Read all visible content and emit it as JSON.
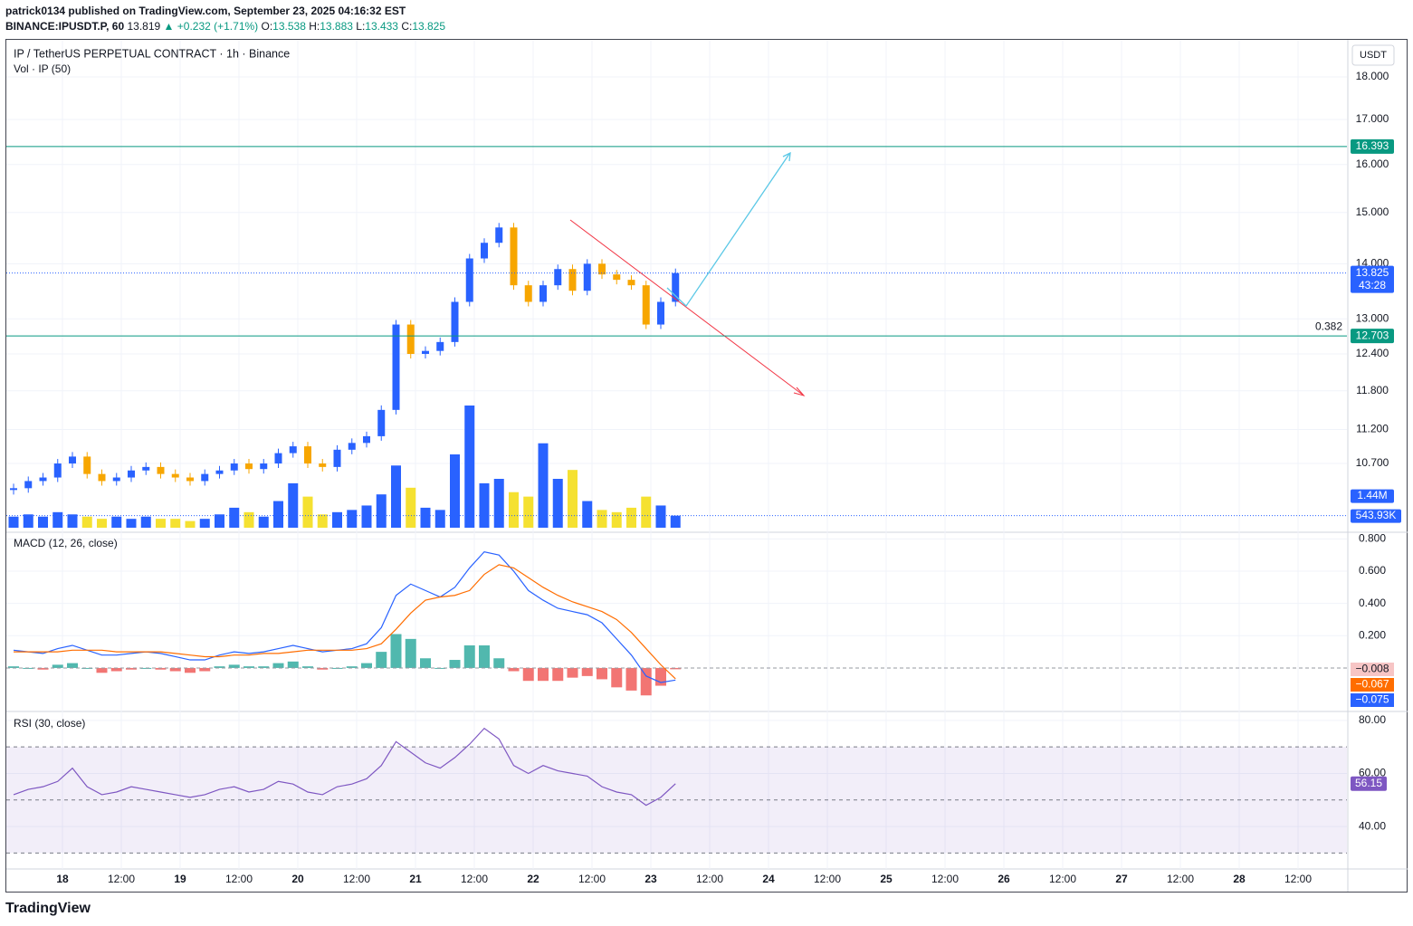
{
  "header": {
    "line1": "patrick0134 published on TradingView.com, September 23, 2025 04:16:32 EST",
    "symbol": "BINANCE:IPUSDT.P, 60",
    "last": "13.819",
    "change": "▲ +0.232 (+1.71%)",
    "ohlc": [
      [
        "O:",
        "13.538"
      ],
      [
        "H:",
        "13.883"
      ],
      [
        "L:",
        "13.433"
      ],
      [
        "C:",
        "13.825"
      ]
    ],
    "brand": "TradingView"
  },
  "chart_data": {
    "type": "candlestick",
    "title": "IP / TetherUS PERPETUAL CONTRACT · 1h · Binance",
    "volume_title": "Vol · IP (50)",
    "currency": "USDT",
    "log_scale": true,
    "xtick_labels": [
      "18",
      "12:00",
      "19",
      "12:00",
      "20",
      "12:00",
      "21",
      "12:00",
      "22",
      "12:00",
      "23",
      "12:00",
      "24",
      "12:00",
      "25",
      "12:00",
      "26",
      "12:00",
      "27",
      "12:00",
      "28",
      "12:00"
    ],
    "closes": [
      10.35,
      10.45,
      10.5,
      10.7,
      10.8,
      10.55,
      10.45,
      10.5,
      10.6,
      10.65,
      10.55,
      10.5,
      10.45,
      10.55,
      10.6,
      10.7,
      10.62,
      10.7,
      10.85,
      10.95,
      10.7,
      10.65,
      10.9,
      11.0,
      11.1,
      11.5,
      12.9,
      12.4,
      12.45,
      12.6,
      13.3,
      14.1,
      14.4,
      14.7,
      13.6,
      13.3,
      13.6,
      13.9,
      13.5,
      14.0,
      13.8,
      13.7,
      13.6,
      12.9,
      13.3,
      13.825
    ],
    "up_color": "#2962ff",
    "down_color": "#f7a600",
    "ylim": [
      9.79,
      18.9
    ],
    "yticks": [
      {
        "value": 18,
        "label": "18.000"
      },
      {
        "value": 17,
        "label": "17.000"
      },
      {
        "value": 16,
        "label": "16.000"
      },
      {
        "value": 15,
        "label": "15.000"
      },
      {
        "value": 14,
        "label": "14.000"
      },
      {
        "value": 13,
        "label": "13.000"
      },
      {
        "value": 12.4,
        "label": "12.400"
      },
      {
        "value": 11.8,
        "label": "11.800"
      },
      {
        "value": 11.2,
        "label": "11.200"
      },
      {
        "value": 10.7,
        "label": "10.700"
      }
    ],
    "price_lines": [
      {
        "value": 16.393,
        "label": "16.393",
        "color": "#089981"
      },
      {
        "value": 12.703,
        "label": "12.703",
        "color": "#089981",
        "fib_label": "0.382"
      }
    ],
    "last_price": {
      "value": 13.825,
      "label": "13.825",
      "countdown": "43:28",
      "color": "#2962ff"
    },
    "volumes": [
      500000,
      600000,
      500000,
      700000,
      600000,
      500000,
      400000,
      500000,
      400000,
      500000,
      400000,
      400000,
      300000,
      400000,
      600000,
      900000,
      700000,
      500000,
      1200000,
      2000000,
      1400000,
      600000,
      700000,
      800000,
      1000000,
      1500000,
      2800000,
      1800000,
      900000,
      800000,
      3300000,
      5500000,
      2000000,
      2200000,
      1600000,
      1400000,
      3800000,
      2200000,
      2600000,
      1200000,
      800000,
      700000,
      900000,
      1400000,
      1000000,
      543930
    ],
    "volume_up_color": "#2962ff",
    "volume_down_color": "#f5e131",
    "volume_ma_label": {
      "value": 1440000,
      "label": "1.44M"
    },
    "volume_last_label": "543.93K",
    "macd": {
      "title": "MACD (12, 26, close)",
      "ylim": [
        -0.264,
        0.83
      ],
      "yticks": [
        {
          "value": 0.8,
          "label": "0.800"
        },
        {
          "value": 0.6,
          "label": "0.600"
        },
        {
          "value": 0.4,
          "label": "0.400"
        },
        {
          "value": 0.2,
          "label": "0.200"
        }
      ],
      "series": [
        {
          "name": "MACD",
          "color": "#2962ff",
          "last_label": "−0.075",
          "values": [
            0.11,
            0.1,
            0.09,
            0.12,
            0.14,
            0.11,
            0.08,
            0.08,
            0.09,
            0.1,
            0.09,
            0.07,
            0.05,
            0.05,
            0.08,
            0.1,
            0.09,
            0.1,
            0.12,
            0.14,
            0.12,
            0.1,
            0.11,
            0.12,
            0.15,
            0.25,
            0.45,
            0.52,
            0.48,
            0.44,
            0.5,
            0.62,
            0.72,
            0.7,
            0.6,
            0.48,
            0.42,
            0.37,
            0.35,
            0.33,
            0.28,
            0.18,
            0.08,
            -0.05,
            -0.09,
            -0.075
          ]
        },
        {
          "name": "Signal",
          "color": "#ff6d00",
          "last_label": "−0.067",
          "values": [
            0.1,
            0.1,
            0.1,
            0.1,
            0.11,
            0.11,
            0.11,
            0.1,
            0.1,
            0.1,
            0.1,
            0.09,
            0.08,
            0.07,
            0.07,
            0.08,
            0.08,
            0.09,
            0.09,
            0.1,
            0.11,
            0.11,
            0.11,
            0.11,
            0.12,
            0.15,
            0.24,
            0.34,
            0.42,
            0.44,
            0.45,
            0.48,
            0.58,
            0.64,
            0.62,
            0.56,
            0.5,
            0.45,
            0.41,
            0.38,
            0.35,
            0.3,
            0.22,
            0.12,
            0.02,
            -0.067
          ]
        }
      ],
      "histogram": {
        "pos_color": "#26a69a",
        "neg_color": "#ef5350",
        "last_label": "−0.008",
        "values": [
          0.01,
          0,
          -0.01,
          0.02,
          0.03,
          0,
          -0.03,
          -0.02,
          -0.01,
          0,
          -0.01,
          -0.02,
          -0.03,
          -0.02,
          0.01,
          0.02,
          0.01,
          0.01,
          0.03,
          0.04,
          0.01,
          -0.01,
          0,
          0.01,
          0.03,
          0.1,
          0.21,
          0.18,
          0.06,
          0,
          0.05,
          0.14,
          0.14,
          0.06,
          -0.02,
          -0.08,
          -0.08,
          -0.08,
          -0.06,
          -0.05,
          -0.07,
          -0.12,
          -0.14,
          -0.17,
          -0.11,
          -0.008
        ]
      }
    },
    "rsi": {
      "title": "RSI (30, close)",
      "color": "#7e57c2",
      "ylim": [
        24,
        82
      ],
      "yticks": [
        {
          "value": 80,
          "label": "80.00"
        },
        {
          "value": 60,
          "label": "60.00"
        },
        {
          "value": 40,
          "label": "40.00"
        }
      ],
      "levels": [
        70,
        50,
        30
      ],
      "values": [
        52,
        54,
        55,
        57,
        62,
        55,
        52,
        53,
        55,
        54,
        53,
        52,
        51,
        52,
        54,
        55,
        53,
        54,
        57,
        56,
        53,
        52,
        55,
        56,
        58,
        63,
        72,
        68,
        64,
        62,
        66,
        71,
        77,
        73,
        63,
        60,
        63,
        61,
        60,
        59,
        55,
        53,
        52,
        48,
        51,
        56.15
      ]
    }
  }
}
